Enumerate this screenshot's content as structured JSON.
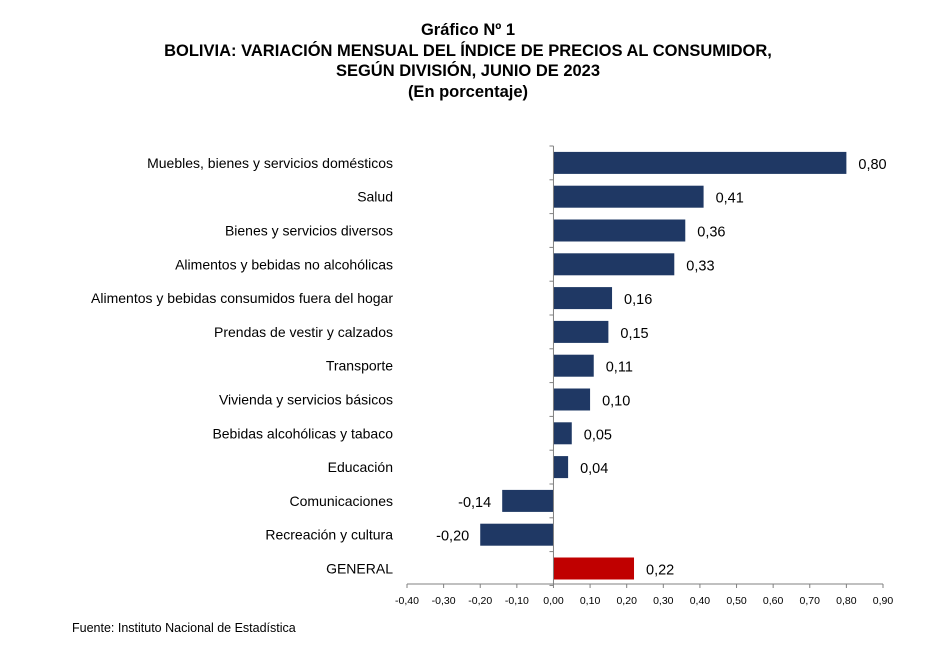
{
  "title": "Gráfico Nº 1",
  "subtitle_line1": "BOLIVIA: VARIACIÓN MENSUAL DEL ÍNDICE DE PRECIOS AL CONSUMIDOR,",
  "subtitle_line2": "SEGÚN DIVISIÓN, JUNIO DE 2023",
  "unit_note": "(En porcentaje)",
  "source": "Fuente: Instituto Nacional de Estadística",
  "colors": {
    "bar": "#1f3864",
    "highlight": "#c00000"
  },
  "chart_data": {
    "type": "bar",
    "orientation": "horizontal",
    "categories": [
      "Muebles, bienes y servicios domésticos",
      "Salud",
      "Bienes y servicios diversos",
      "Alimentos y bebidas no alcohólicas",
      "Alimentos y bebidas consumidos fuera del hogar",
      "Prendas de vestir y calzados",
      "Transporte",
      "Vivienda y servicios básicos",
      "Bebidas alcohólicas y tabaco",
      "Educación",
      "Comunicaciones",
      "Recreación y cultura",
      "GENERAL"
    ],
    "values": [
      0.8,
      0.41,
      0.36,
      0.33,
      0.16,
      0.15,
      0.11,
      0.1,
      0.05,
      0.04,
      -0.14,
      -0.2,
      0.22
    ],
    "value_labels": [
      "0,80",
      "0,41",
      "0,36",
      "0,33",
      "0,16",
      "0,15",
      "0,11",
      "0,10",
      "0,05",
      "0,04",
      "-0,14",
      "-0,20",
      "0,22"
    ],
    "highlight_category": "GENERAL",
    "xlim": [
      -0.4,
      0.9
    ],
    "xticks": [
      "-0,40",
      "-0,30",
      "-0,20",
      "-0,10",
      "0,00",
      "0,10",
      "0,20",
      "0,30",
      "0,40",
      "0,50",
      "0,60",
      "0,70",
      "0,80",
      "0,90"
    ],
    "grid": false,
    "legend": "none"
  }
}
